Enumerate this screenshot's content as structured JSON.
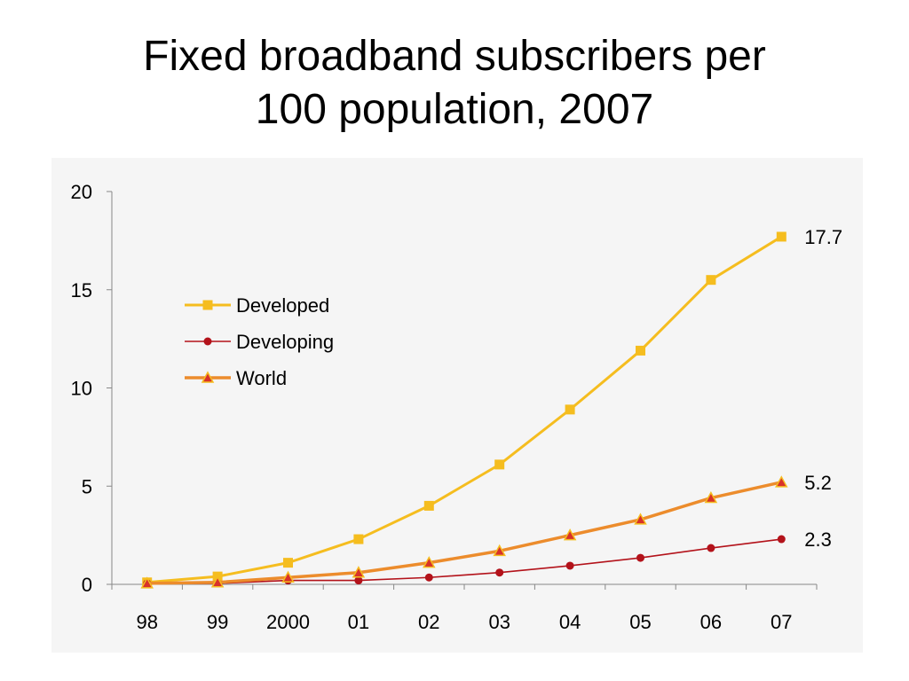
{
  "slide": {
    "title_line1": "Fixed broadband subscribers per",
    "title_line2": "100 population, 2007"
  },
  "colors": {
    "background": "#ffffff",
    "panel": "#f5f5f5",
    "developed": "#f5bd1f",
    "developing": "#b3121a",
    "world": "#ec8c2c",
    "world_marker": "#d8322a"
  },
  "chart_data": {
    "type": "line",
    "title": "",
    "xlabel": "",
    "ylabel": "",
    "categories": [
      "98",
      "99",
      "2000",
      "01",
      "02",
      "03",
      "04",
      "05",
      "06",
      "07"
    ],
    "ylim": [
      0,
      20
    ],
    "yticks": [
      "0",
      "5",
      "10",
      "15",
      "20"
    ],
    "grid": false,
    "legend_position": "upper-left",
    "series": [
      {
        "name": "Developed",
        "marker": "square",
        "values": [
          0.1,
          0.4,
          1.1,
          2.3,
          4.0,
          6.1,
          8.9,
          11.9,
          15.5,
          17.7
        ],
        "end_label": "17.7"
      },
      {
        "name": "Developing",
        "marker": "circle",
        "values": [
          0.05,
          0.05,
          0.2,
          0.2,
          0.35,
          0.6,
          0.95,
          1.35,
          1.85,
          2.3
        ],
        "end_label": "2.3"
      },
      {
        "name": "World",
        "marker": "triangle",
        "values": [
          0.05,
          0.1,
          0.35,
          0.6,
          1.1,
          1.7,
          2.5,
          3.3,
          4.4,
          5.2
        ],
        "end_label": "5.2"
      }
    ]
  }
}
